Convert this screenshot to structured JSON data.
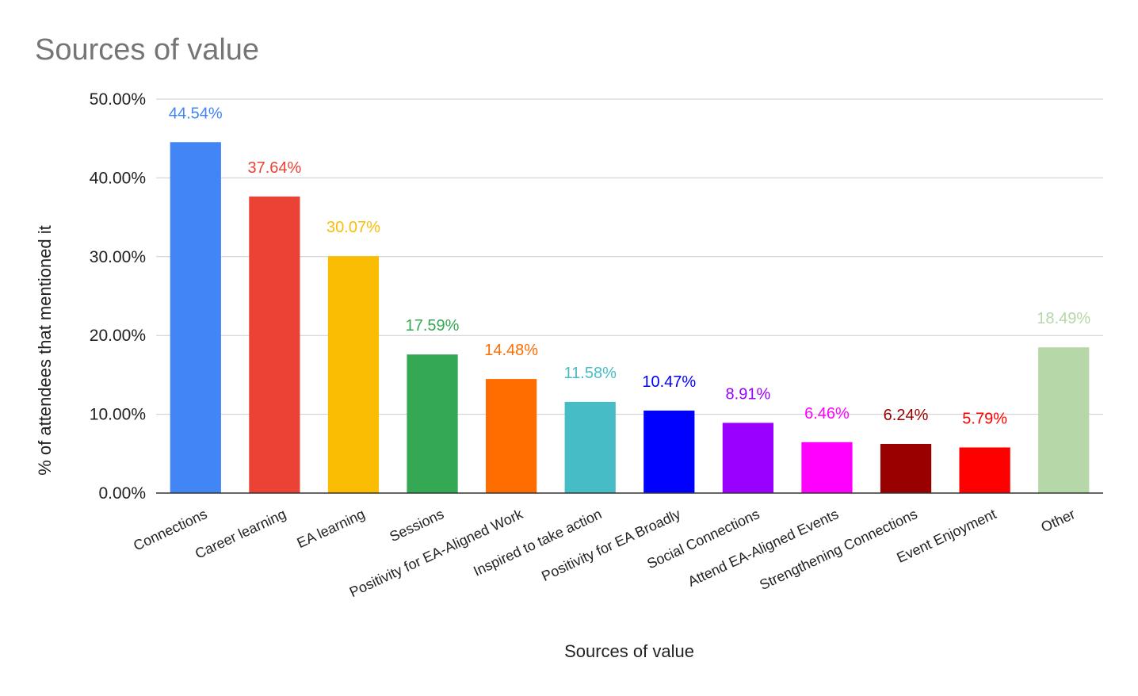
{
  "chart_data": {
    "type": "bar",
    "title": "Sources of value",
    "xlabel": "Sources of value",
    "ylabel": "% of attendees that mentioned it",
    "ylim": [
      0,
      50
    ],
    "yticks": [
      "0.00%",
      "10.00%",
      "20.00%",
      "30.00%",
      "40.00%",
      "50.00%"
    ],
    "grid": true,
    "legend": "none",
    "categories": [
      "Connections",
      "Career learning",
      "EA learning",
      "Sessions",
      "Positivity for EA-Aligned Work",
      "Inspired to take action",
      "Positivity for EA Broadly",
      "Social Connections",
      "Attend EA-Aligned Events",
      "Strengthening Connections",
      "Event Enjoyment",
      "Other"
    ],
    "values": [
      44.54,
      37.64,
      30.07,
      17.59,
      14.48,
      11.58,
      10.47,
      8.91,
      6.46,
      6.24,
      5.79,
      18.49
    ],
    "data_labels": [
      "44.54%",
      "37.64%",
      "30.07%",
      "17.59%",
      "14.48%",
      "11.58%",
      "10.47%",
      "8.91%",
      "6.46%",
      "6.24%",
      "5.79%",
      "18.49%"
    ],
    "colors": [
      "#4285f4",
      "#ea4335",
      "#fbbc04",
      "#34a853",
      "#ff6d01",
      "#46bdc6",
      "#0000ff",
      "#9900ff",
      "#ff00ff",
      "#990000",
      "#ff0000",
      "#b6d7a8"
    ]
  }
}
